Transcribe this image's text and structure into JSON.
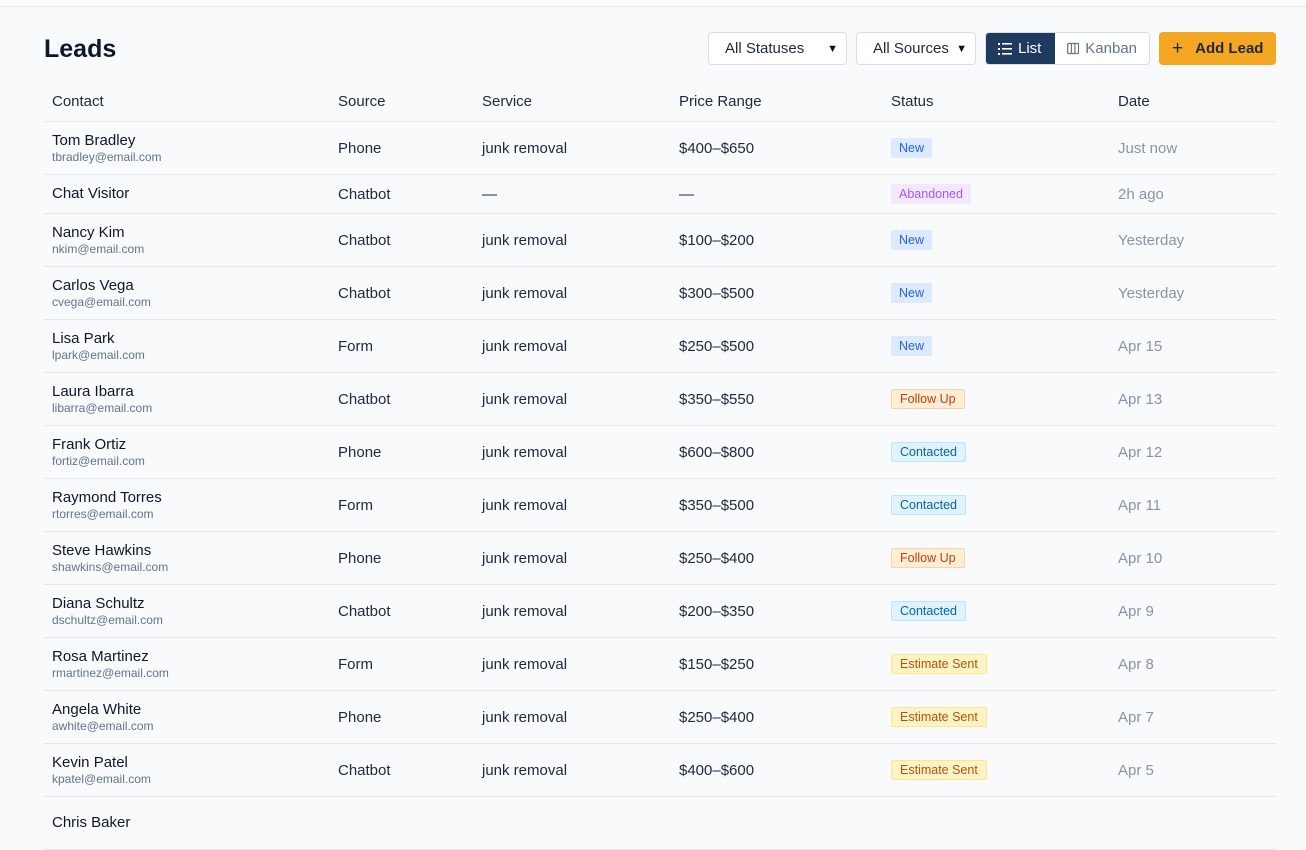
{
  "page": {
    "title": "Leads"
  },
  "filters": {
    "status": "All Statuses",
    "source": "All Sources"
  },
  "view_toggle": {
    "list": "List",
    "kanban": "Kanban",
    "active": "List"
  },
  "actions": {
    "add_lead": "Add Lead"
  },
  "table": {
    "columns": [
      "Contact",
      "Source",
      "Service",
      "Price Range",
      "Status",
      "Date"
    ],
    "rows": [
      {
        "name": "Tom Bradley",
        "email": "tbradley@email.com",
        "source": "Phone",
        "service": "junk removal",
        "price": "$400–$650",
        "status": "New",
        "date": "Just now"
      },
      {
        "name": "Chat Visitor",
        "email": "",
        "source": "Chatbot",
        "service": "—",
        "price": "—",
        "status": "Abandoned",
        "date": "2h ago"
      },
      {
        "name": "Nancy Kim",
        "email": "nkim@email.com",
        "source": "Chatbot",
        "service": "junk removal",
        "price": "$100–$200",
        "status": "New",
        "date": "Yesterday"
      },
      {
        "name": "Carlos Vega",
        "email": "cvega@email.com",
        "source": "Chatbot",
        "service": "junk removal",
        "price": "$300–$500",
        "status": "New",
        "date": "Yesterday"
      },
      {
        "name": "Lisa Park",
        "email": "lpark@email.com",
        "source": "Form",
        "service": "junk removal",
        "price": "$250–$500",
        "status": "New",
        "date": "Apr 15"
      },
      {
        "name": "Laura Ibarra",
        "email": "libarra@email.com",
        "source": "Chatbot",
        "service": "junk removal",
        "price": "$350–$550",
        "status": "Follow Up",
        "date": "Apr 13"
      },
      {
        "name": "Frank Ortiz",
        "email": "fortiz@email.com",
        "source": "Phone",
        "service": "junk removal",
        "price": "$600–$800",
        "status": "Contacted",
        "date": "Apr 12"
      },
      {
        "name": "Raymond Torres",
        "email": "rtorres@email.com",
        "source": "Form",
        "service": "junk removal",
        "price": "$350–$500",
        "status": "Contacted",
        "date": "Apr 11"
      },
      {
        "name": "Steve Hawkins",
        "email": "shawkins@email.com",
        "source": "Phone",
        "service": "junk removal",
        "price": "$250–$400",
        "status": "Follow Up",
        "date": "Apr 10"
      },
      {
        "name": "Diana Schultz",
        "email": "dschultz@email.com",
        "source": "Chatbot",
        "service": "junk removal",
        "price": "$200–$350",
        "status": "Contacted",
        "date": "Apr 9"
      },
      {
        "name": "Rosa Martinez",
        "email": "rmartinez@email.com",
        "source": "Form",
        "service": "junk removal",
        "price": "$150–$250",
        "status": "Estimate Sent",
        "date": "Apr 8"
      },
      {
        "name": "Angela White",
        "email": "awhite@email.com",
        "source": "Phone",
        "service": "junk removal",
        "price": "$250–$400",
        "status": "Estimate Sent",
        "date": "Apr 7"
      },
      {
        "name": "Kevin Patel",
        "email": "kpatel@email.com",
        "source": "Chatbot",
        "service": "junk removal",
        "price": "$400–$600",
        "status": "Estimate Sent",
        "date": "Apr 5"
      },
      {
        "name": "Chris Baker",
        "email": "",
        "source": "",
        "service": "",
        "price": "",
        "status": "",
        "date": ""
      }
    ]
  },
  "status_colors": {
    "New": "#2563eb",
    "Abandoned": "#a855f7",
    "Follow Up": "#c2410c",
    "Contacted": "#0369a1",
    "Estimate Sent": "#b45309"
  },
  "accent": {
    "primary": "#1e3a5f",
    "cta": "#f5a623"
  }
}
